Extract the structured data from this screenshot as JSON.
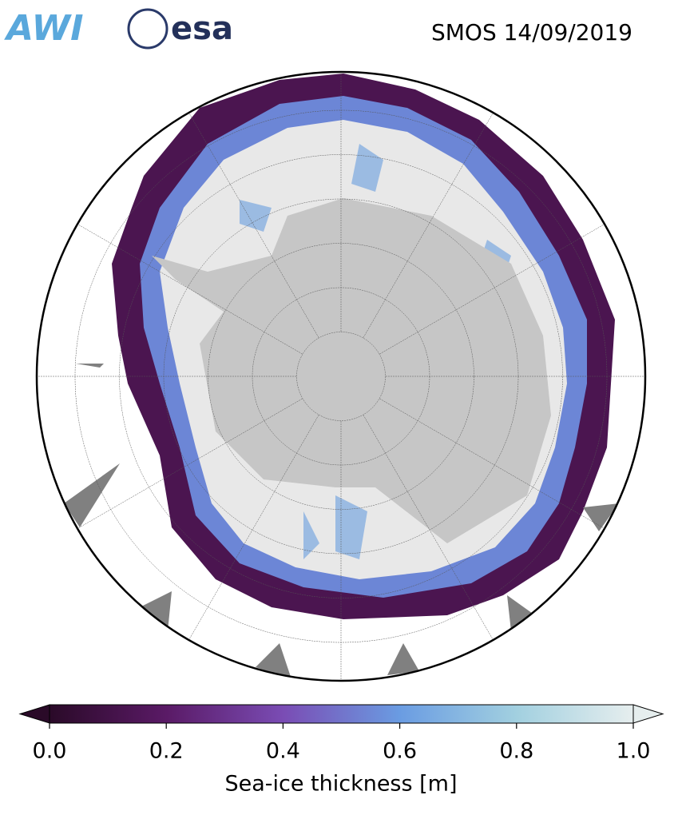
{
  "header": {
    "logos": [
      "AWI",
      "esa"
    ],
    "title": "SMOS 14/09/2019"
  },
  "colorbar": {
    "label": "Sea-ice thickness [m]",
    "lim": [
      0,
      1
    ],
    "ticks": [
      {
        "value": 0,
        "label": "0.0"
      },
      {
        "value": 0.2,
        "label": "0.2"
      },
      {
        "value": 0.4,
        "label": "0.4"
      },
      {
        "value": 0.6,
        "label": "0.6"
      },
      {
        "value": 0.8,
        "label": "0.8"
      },
      {
        "value": 1,
        "label": "1.0"
      }
    ],
    "colors": [
      "#2a0a28",
      "#5a1a66",
      "#7a4cb4",
      "#6a9ce2",
      "#a2d0e0",
      "#e6eeee"
    ]
  }
}
